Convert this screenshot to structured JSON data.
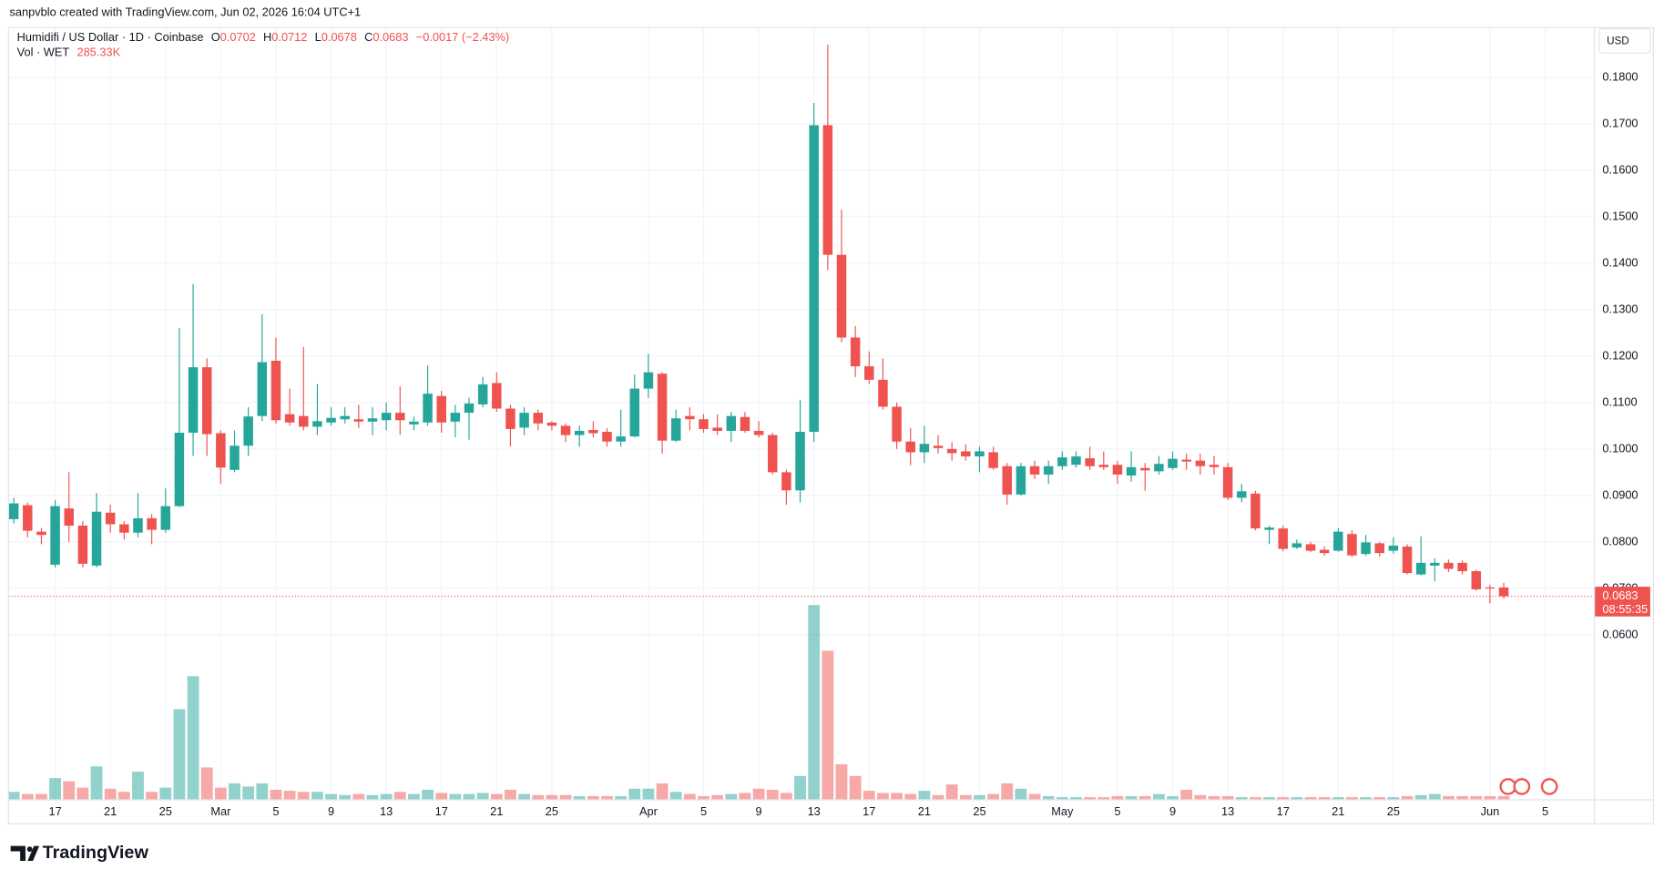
{
  "attribution": "sanpvblo created with TradingView.com, Jun 02, 2026 16:04 UTC+1",
  "watermark": "TradingView",
  "currency": "USD",
  "countdown": "08:55:35",
  "chart_data": {
    "type": "candlestick",
    "title": "Humidifi / US Dollar · 1D · Coinbase",
    "legend": {
      "open_label": "O",
      "high_label": "H",
      "low_label": "L",
      "close_label": "C",
      "change": "−0.0017 (−2.43%)",
      "volume_title": "Vol · WET",
      "volume_label": "285.33K"
    },
    "up_color": "#26a69a",
    "down_color": "#ef5350",
    "categories": [
      "Feb 14",
      "Feb 15",
      "Feb 16",
      "Feb 17",
      "Feb 18",
      "Feb 19",
      "Feb 20",
      "Feb 21",
      "Feb 22",
      "Feb 23",
      "Feb 24",
      "Feb 25",
      "Feb 26",
      "Feb 27",
      "Feb 28",
      "Mar 1",
      "Mar 2",
      "Mar 3",
      "Mar 4",
      "Mar 5",
      "Mar 6",
      "Mar 7",
      "Mar 8",
      "Mar 9",
      "Mar 10",
      "Mar 11",
      "Mar 12",
      "Mar 13",
      "Mar 14",
      "Mar 15",
      "Mar 16",
      "Mar 17",
      "Mar 18",
      "Mar 19",
      "Mar 20",
      "Mar 21",
      "Mar 22",
      "Mar 23",
      "Mar 24",
      "Mar 25",
      "Mar 26",
      "Mar 27",
      "Mar 28",
      "Mar 29",
      "Mar 30",
      "Mar 31",
      "Apr 1",
      "Apr 2",
      "Apr 3",
      "Apr 4",
      "Apr 5",
      "Apr 6",
      "Apr 7",
      "Apr 8",
      "Apr 9",
      "Apr 10",
      "Apr 11",
      "Apr 12",
      "Apr 13",
      "Apr 14",
      "Apr 15",
      "Apr 16",
      "Apr 17",
      "Apr 18",
      "Apr 19",
      "Apr 20",
      "Apr 21",
      "Apr 22",
      "Apr 23",
      "Apr 24",
      "Apr 25",
      "Apr 26",
      "Apr 27",
      "Apr 28",
      "Apr 29",
      "Apr 30",
      "May 1",
      "May 2",
      "May 3",
      "May 4",
      "May 5",
      "May 6",
      "May 7",
      "May 8",
      "May 9",
      "May 10",
      "May 11",
      "May 12",
      "May 13",
      "May 14",
      "May 15",
      "May 16",
      "May 17",
      "May 18",
      "May 19",
      "May 20",
      "May 21",
      "May 22",
      "May 23",
      "May 24",
      "May 25",
      "May 26",
      "May 27",
      "May 28",
      "May 29",
      "May 30",
      "May 31",
      "Jun 1",
      "Jun 2"
    ],
    "open": [
      0.0849,
      0.0879,
      0.0822,
      0.0751,
      0.0872,
      0.0835,
      0.0749,
      0.0863,
      0.0838,
      0.082,
      0.0851,
      0.0826,
      0.0877,
      0.1035,
      0.1176,
      0.1034,
      0.0955,
      0.1007,
      0.1071,
      0.119,
      0.1075,
      0.1071,
      0.1048,
      0.1057,
      0.1064,
      0.1064,
      0.1059,
      0.1062,
      0.1078,
      0.1053,
      0.1057,
      0.1114,
      0.1059,
      0.1078,
      0.1096,
      0.1142,
      0.1087,
      0.1046,
      0.1078,
      0.1057,
      0.105,
      0.103,
      0.1041,
      0.1037,
      0.1016,
      0.1027,
      0.113,
      0.1162,
      0.1018,
      0.1071,
      0.1064,
      0.1046,
      0.1039,
      0.1069,
      0.1039,
      0.103,
      0.095,
      0.0911,
      0.1037,
      0.1697,
      0.1418,
      0.124,
      0.1178,
      0.1149,
      0.1091,
      0.1016,
      0.0993,
      0.1007,
      0.1,
      0.0995,
      0.0984,
      0.0993,
      0.0963,
      0.0902,
      0.0963,
      0.0945,
      0.0963,
      0.0966,
      0.098,
      0.0966,
      0.0966,
      0.0943,
      0.0959,
      0.0952,
      0.0959,
      0.0977,
      0.0975,
      0.0966,
      0.0961,
      0.0895,
      0.0904,
      0.0826,
      0.0829,
      0.0788,
      0.0795,
      0.0783,
      0.0781,
      0.0817,
      0.0774,
      0.0797,
      0.0781,
      0.079,
      0.073,
      0.0749,
      0.0755,
      0.0755,
      0.0737,
      0.0702,
      0.0702
    ],
    "high": [
      0.0895,
      0.0885,
      0.083,
      0.089,
      0.095,
      0.0845,
      0.0905,
      0.088,
      0.0845,
      0.0905,
      0.086,
      0.0915,
      0.126,
      0.1355,
      0.1195,
      0.104,
      0.104,
      0.109,
      0.129,
      0.124,
      0.113,
      0.122,
      0.114,
      0.109,
      0.109,
      0.1095,
      0.109,
      0.11,
      0.1135,
      0.107,
      0.118,
      0.1125,
      0.1095,
      0.111,
      0.1155,
      0.1165,
      0.1095,
      0.109,
      0.1085,
      0.106,
      0.1055,
      0.105,
      0.106,
      0.1045,
      0.1085,
      0.116,
      0.1205,
      0.1165,
      0.1085,
      0.109,
      0.1075,
      0.1075,
      0.108,
      0.108,
      0.106,
      0.1035,
      0.0955,
      0.1105,
      0.1745,
      0.187,
      0.1515,
      0.1265,
      0.121,
      0.1195,
      0.11,
      0.1045,
      0.105,
      0.103,
      0.1015,
      0.101,
      0.1005,
      0.1005,
      0.097,
      0.097,
      0.0975,
      0.0975,
      0.0995,
      0.0995,
      0.1005,
      0.0995,
      0.0975,
      0.0995,
      0.097,
      0.0985,
      0.0995,
      0.099,
      0.099,
      0.0985,
      0.097,
      0.0925,
      0.091,
      0.0835,
      0.0835,
      0.0805,
      0.08,
      0.079,
      0.083,
      0.0825,
      0.0815,
      0.08,
      0.081,
      0.0795,
      0.0812,
      0.0765,
      0.0762,
      0.076,
      0.074,
      0.0708,
      0.0712
    ],
    "low": [
      0.084,
      0.081,
      0.0795,
      0.0745,
      0.08,
      0.0745,
      0.0745,
      0.082,
      0.0805,
      0.081,
      0.0795,
      0.082,
      0.0875,
      0.0985,
      0.0985,
      0.0925,
      0.095,
      0.0985,
      0.106,
      0.1055,
      0.105,
      0.104,
      0.103,
      0.105,
      0.1055,
      0.1045,
      0.103,
      0.104,
      0.103,
      0.104,
      0.105,
      0.1035,
      0.1025,
      0.102,
      0.109,
      0.108,
      0.1005,
      0.103,
      0.104,
      0.104,
      0.1015,
      0.1005,
      0.1025,
      0.1005,
      0.1005,
      0.1025,
      0.111,
      0.099,
      0.1015,
      0.104,
      0.1035,
      0.103,
      0.1015,
      0.1035,
      0.1025,
      0.0945,
      0.088,
      0.0885,
      0.1015,
      0.1385,
      0.123,
      0.1155,
      0.114,
      0.1085,
      0.1,
      0.0965,
      0.097,
      0.099,
      0.0975,
      0.0975,
      0.095,
      0.0955,
      0.088,
      0.09,
      0.0935,
      0.0925,
      0.0955,
      0.096,
      0.0955,
      0.0955,
      0.0925,
      0.093,
      0.091,
      0.0945,
      0.0955,
      0.0955,
      0.0945,
      0.0945,
      0.089,
      0.0885,
      0.0825,
      0.0795,
      0.078,
      0.0785,
      0.0778,
      0.077,
      0.0779,
      0.0768,
      0.077,
      0.0768,
      0.0775,
      0.073,
      0.0728,
      0.0715,
      0.0735,
      0.073,
      0.0695,
      0.0668,
      0.0678
    ],
    "close": [
      0.0883,
      0.0824,
      0.0815,
      0.0877,
      0.0835,
      0.0753,
      0.0865,
      0.0838,
      0.082,
      0.0851,
      0.0826,
      0.0877,
      0.1035,
      0.1176,
      0.1032,
      0.096,
      0.1007,
      0.107,
      0.1187,
      0.1062,
      0.1057,
      0.1048,
      0.106,
      0.1067,
      0.1071,
      0.1059,
      0.1066,
      0.1078,
      0.1062,
      0.1059,
      0.1119,
      0.1057,
      0.1078,
      0.1098,
      0.1139,
      0.1087,
      0.1043,
      0.1078,
      0.1055,
      0.105,
      0.103,
      0.1039,
      0.1034,
      0.1016,
      0.1027,
      0.113,
      0.1165,
      0.1018,
      0.1066,
      0.1064,
      0.1043,
      0.1039,
      0.1071,
      0.1039,
      0.103,
      0.095,
      0.0911,
      0.1037,
      0.1697,
      0.1418,
      0.124,
      0.1178,
      0.1149,
      0.1091,
      0.1016,
      0.0993,
      0.1011,
      0.1002,
      0.0991,
      0.0984,
      0.0995,
      0.0959,
      0.0902,
      0.0963,
      0.0945,
      0.0963,
      0.0982,
      0.0984,
      0.0963,
      0.0961,
      0.0945,
      0.0961,
      0.0954,
      0.0968,
      0.0979,
      0.0973,
      0.0963,
      0.0961,
      0.0895,
      0.0909,
      0.0829,
      0.0831,
      0.0785,
      0.0797,
      0.0781,
      0.0776,
      0.0822,
      0.0771,
      0.0799,
      0.0776,
      0.0792,
      0.0733,
      0.0755,
      0.0755,
      0.0742,
      0.0737,
      0.0698,
      0.07,
      0.0683
    ],
    "volume": [
      665000,
      475000,
      475000,
      1900000,
      1615000,
      1045000,
      2945000,
      950000,
      665000,
      2470000,
      665000,
      1045000,
      8075000,
      11020000,
      2850000,
      1045000,
      1425000,
      1140000,
      1425000,
      855000,
      760000,
      665000,
      665000,
      475000,
      380000,
      475000,
      380000,
      475000,
      665000,
      475000,
      855000,
      570000,
      475000,
      475000,
      570000,
      475000,
      855000,
      475000,
      380000,
      380000,
      380000,
      285000,
      285000,
      285000,
      285000,
      950000,
      950000,
      1425000,
      665000,
      475000,
      285000,
      380000,
      475000,
      570000,
      950000,
      855000,
      570000,
      2090000,
      17385000,
      13300000,
      3135000,
      2090000,
      760000,
      570000,
      570000,
      475000,
      760000,
      380000,
      1330000,
      380000,
      380000,
      475000,
      1425000,
      950000,
      475000,
      285000,
      190000,
      190000,
      190000,
      190000,
      285000,
      285000,
      285000,
      475000,
      285000,
      855000,
      380000,
      285000,
      285000,
      190000,
      190000,
      190000,
      190000,
      190000,
      190000,
      190000,
      190000,
      190000,
      190000,
      190000,
      190000,
      285000,
      380000,
      475000,
      285000,
      285000,
      285000,
      285000,
      285330
    ],
    "ylim": [
      0.0246,
      0.1907
    ],
    "yticks": [
      {
        "value": 0.06,
        "label": "0.0600"
      },
      {
        "value": 0.07,
        "label": "0.0700"
      },
      {
        "value": 0.08,
        "label": "0.0800"
      },
      {
        "value": 0.09,
        "label": "0.0900"
      },
      {
        "value": 0.1,
        "label": "0.1000"
      },
      {
        "value": 0.11,
        "label": "0.1100"
      },
      {
        "value": 0.12,
        "label": "0.1200"
      },
      {
        "value": 0.13,
        "label": "0.1300"
      },
      {
        "value": 0.14,
        "label": "0.1400"
      },
      {
        "value": 0.15,
        "label": "0.1500"
      },
      {
        "value": 0.16,
        "label": "0.1600"
      },
      {
        "value": 0.17,
        "label": "0.1700"
      },
      {
        "value": 0.18,
        "label": "0.1800"
      }
    ],
    "xticks": [
      {
        "value": "Feb 17",
        "label": "17"
      },
      {
        "value": "Feb 21",
        "label": "21"
      },
      {
        "value": "Feb 25",
        "label": "25"
      },
      {
        "value": "Mar 1",
        "label": "Mar"
      },
      {
        "value": "Mar 5",
        "label": "5"
      },
      {
        "value": "Mar 9",
        "label": "9"
      },
      {
        "value": "Mar 13",
        "label": "13"
      },
      {
        "value": "Mar 17",
        "label": "17"
      },
      {
        "value": "Mar 21",
        "label": "21"
      },
      {
        "value": "Mar 25",
        "label": "25"
      },
      {
        "value": "Apr 1",
        "label": "Apr"
      },
      {
        "value": "Apr 5",
        "label": "5"
      },
      {
        "value": "Apr 9",
        "label": "9"
      },
      {
        "value": "Apr 13",
        "label": "13"
      },
      {
        "value": "Apr 17",
        "label": "17"
      },
      {
        "value": "Apr 21",
        "label": "21"
      },
      {
        "value": "Apr 25",
        "label": "25"
      },
      {
        "value": "May 1",
        "label": "May"
      },
      {
        "value": "May 5",
        "label": "5"
      },
      {
        "value": "May 9",
        "label": "9"
      },
      {
        "value": "May 13",
        "label": "13"
      },
      {
        "value": "May 17",
        "label": "17"
      },
      {
        "value": "May 21",
        "label": "21"
      },
      {
        "value": "May 25",
        "label": "25"
      },
      {
        "value": "Jun 1",
        "label": "Jun"
      },
      {
        "value": "Jun 5",
        "label": "5"
      }
    ],
    "grid": true
  }
}
